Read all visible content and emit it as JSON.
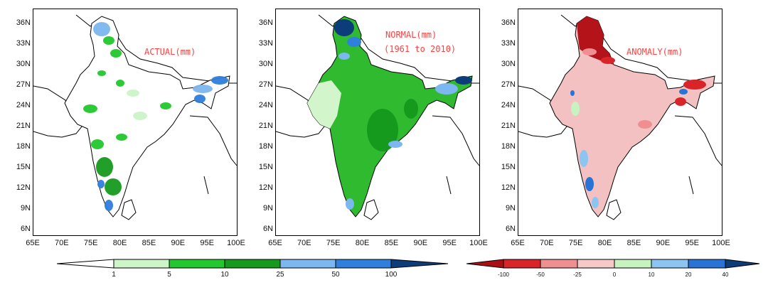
{
  "panels": [
    {
      "title": "ACTUAL(mm)",
      "subtitle": ""
    },
    {
      "title": "NORMAL(mm)",
      "subtitle": "(1961 to 2010)"
    },
    {
      "title": "ANOMALY(mm)",
      "subtitle": ""
    }
  ],
  "lat_labels": [
    "36N",
    "33N",
    "30N",
    "27N",
    "24N",
    "21N",
    "18N",
    "15N",
    "12N",
    "9N",
    "6N"
  ],
  "lon_labels": [
    "65E",
    "70E",
    "75E",
    "80E",
    "85E",
    "90E",
    "95E",
    "100E"
  ],
  "rain_colorbar": {
    "labels": [
      "1",
      "5",
      "10",
      "25",
      "50",
      "100"
    ],
    "colors": [
      "#ffffff",
      "#ccf5c8",
      "#22c82e",
      "#169a1e",
      "#7cb7f0",
      "#2f7fdc",
      "#0c3d7a"
    ]
  },
  "anomaly_colorbar": {
    "labels": [
      "-100",
      "-50",
      "-25",
      "0",
      "10",
      "20",
      "40"
    ],
    "colors": [
      "#a90f14",
      "#d9252a",
      "#ef8f92",
      "#f6c8c8",
      "#c6f3c0",
      "#8cc4f2",
      "#2a73d6",
      "#0c3d7a"
    ]
  },
  "colors": {
    "title": "#ff4040",
    "normal_fill": "#2fba2f",
    "normal_dry": "#d3f5cc",
    "anomaly_fill": "#f3c1c1",
    "deep_red": "#b4131a",
    "deep_blue": "#0c3d7a"
  }
}
